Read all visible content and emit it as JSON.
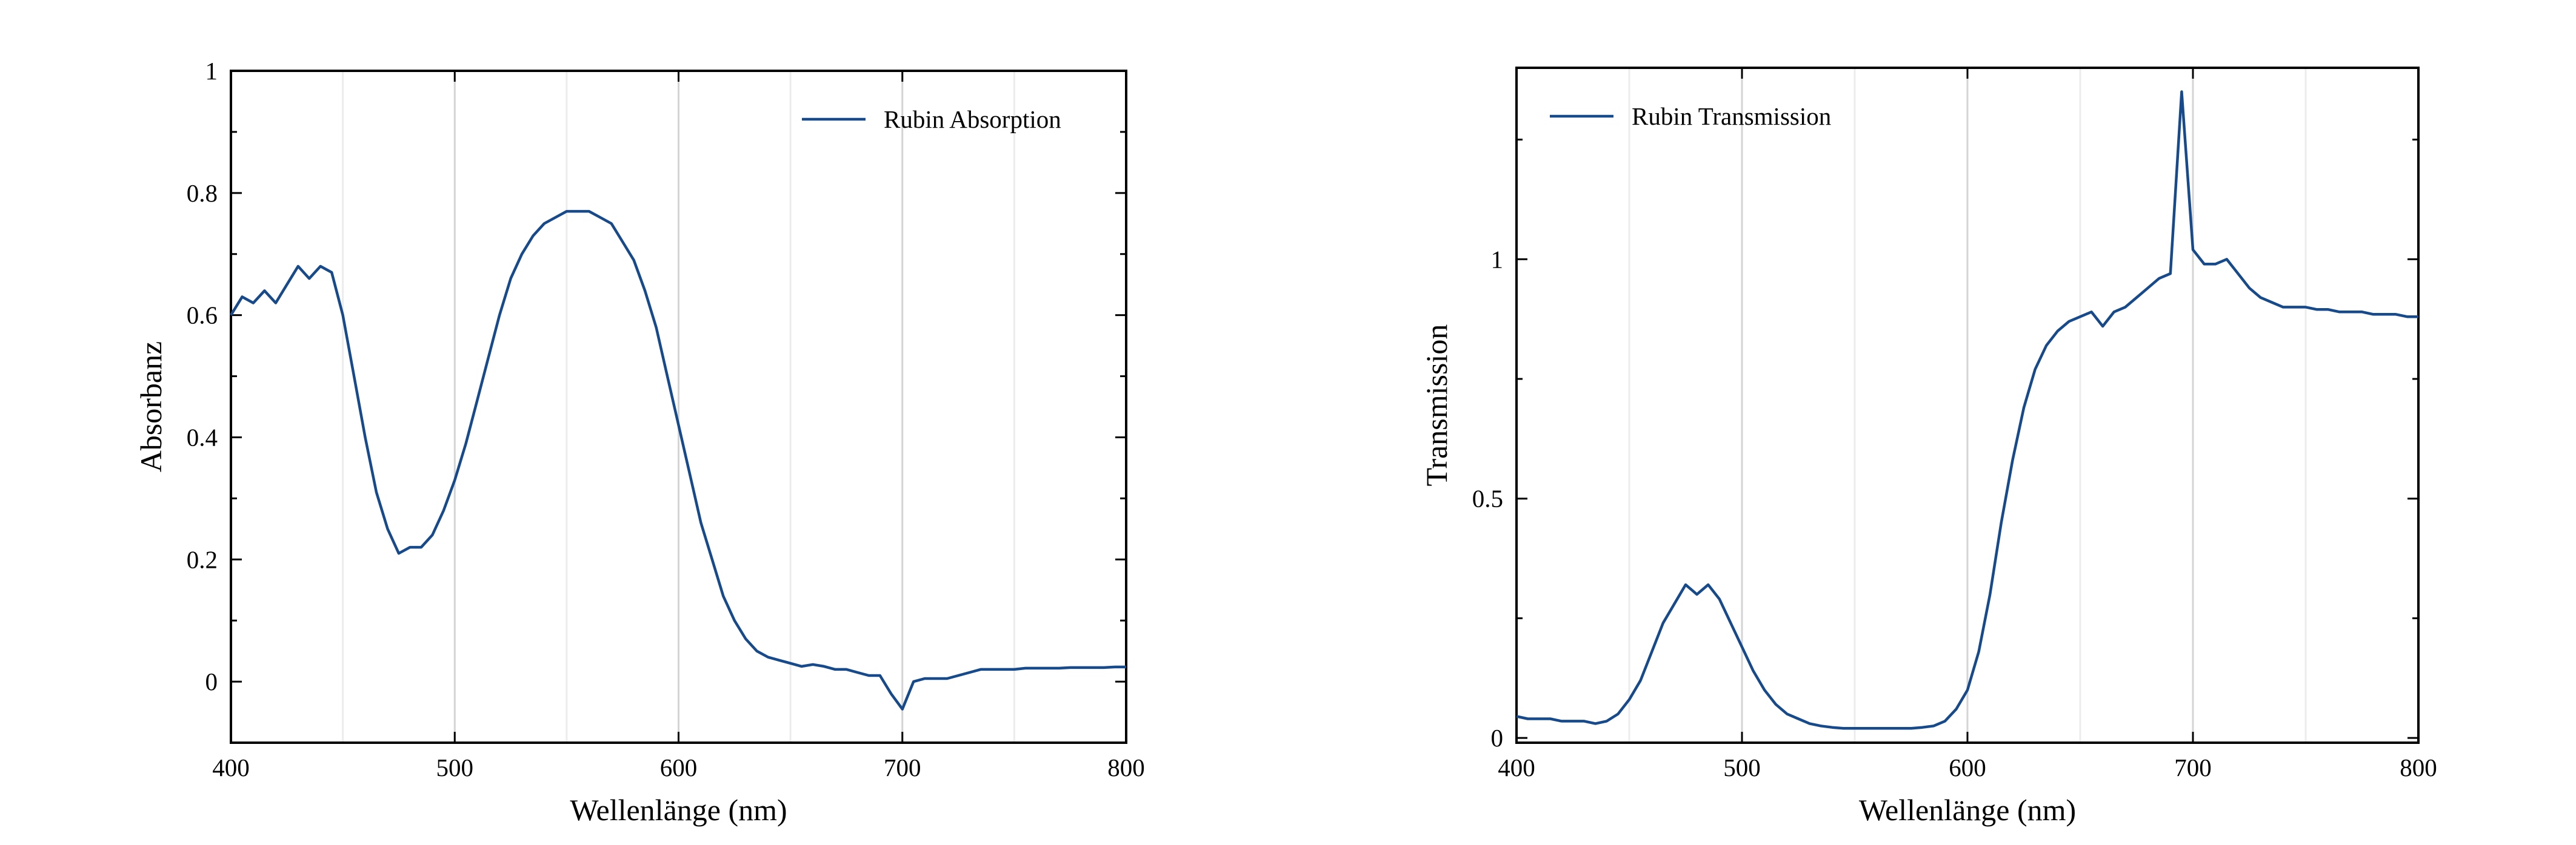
{
  "chart_data": [
    {
      "type": "line",
      "xlabel": "Wellenlänge (nm)",
      "ylabel": "Absorbanz",
      "x": [
        400,
        405,
        410,
        415,
        420,
        425,
        430,
        435,
        440,
        445,
        450,
        455,
        460,
        465,
        470,
        475,
        480,
        485,
        490,
        495,
        500,
        505,
        510,
        515,
        520,
        525,
        530,
        535,
        540,
        545,
        550,
        555,
        560,
        565,
        570,
        575,
        580,
        585,
        590,
        595,
        600,
        605,
        610,
        615,
        620,
        625,
        630,
        635,
        640,
        645,
        650,
        655,
        660,
        665,
        670,
        675,
        680,
        685,
        690,
        695,
        700,
        705,
        710,
        715,
        720,
        725,
        730,
        735,
        740,
        745,
        750,
        755,
        760,
        765,
        770,
        775,
        780,
        785,
        790,
        795,
        800
      ],
      "series": [
        {
          "name": "Rubin Absorption",
          "color": "#174a8b",
          "values": [
            0.6,
            0.63,
            0.62,
            0.64,
            0.62,
            0.65,
            0.68,
            0.66,
            0.68,
            0.67,
            0.6,
            0.5,
            0.4,
            0.31,
            0.25,
            0.21,
            0.22,
            0.22,
            0.24,
            0.28,
            0.33,
            0.39,
            0.46,
            0.53,
            0.6,
            0.66,
            0.7,
            0.73,
            0.75,
            0.76,
            0.77,
            0.77,
            0.77,
            0.76,
            0.75,
            0.72,
            0.69,
            0.64,
            0.58,
            0.5,
            0.42,
            0.34,
            0.26,
            0.2,
            0.14,
            0.1,
            0.07,
            0.05,
            0.04,
            0.035,
            0.03,
            0.025,
            0.028,
            0.025,
            0.02,
            0.02,
            0.015,
            0.01,
            0.01,
            -0.02,
            -0.045,
            0,
            0.005,
            0.005,
            0.005,
            0.01,
            0.015,
            0.02,
            0.02,
            0.02,
            0.02,
            0.022,
            0.022,
            0.022,
            0.022,
            0.023,
            0.023,
            0.023,
            0.023,
            0.024,
            0.024
          ]
        }
      ],
      "xlim": [
        400,
        800
      ],
      "ylim": [
        -0.1,
        1
      ],
      "xticks": [
        400,
        500,
        600,
        700,
        800
      ],
      "yticks": [
        0,
        0.2,
        0.4,
        0.6,
        0.8,
        1
      ],
      "grid": true,
      "legend": "upper right"
    },
    {
      "type": "line",
      "xlabel": "Wellenlänge (nm)",
      "ylabel": "Transmission",
      "x": [
        400,
        405,
        410,
        415,
        420,
        425,
        430,
        435,
        440,
        445,
        450,
        455,
        460,
        465,
        470,
        475,
        480,
        485,
        490,
        495,
        500,
        505,
        510,
        515,
        520,
        525,
        530,
        535,
        540,
        545,
        550,
        555,
        560,
        565,
        570,
        575,
        580,
        585,
        590,
        595,
        600,
        605,
        610,
        615,
        620,
        625,
        630,
        635,
        640,
        645,
        650,
        655,
        660,
        665,
        670,
        675,
        680,
        685,
        690,
        695,
        700,
        705,
        710,
        715,
        720,
        725,
        730,
        735,
        740,
        745,
        750,
        755,
        760,
        765,
        770,
        775,
        780,
        785,
        790,
        795,
        800
      ],
      "series": [
        {
          "name": "Rubin Transmission",
          "color": "#174a8b",
          "values": [
            0.045,
            0.04,
            0.04,
            0.04,
            0.035,
            0.035,
            0.035,
            0.03,
            0.035,
            0.05,
            0.08,
            0.12,
            0.18,
            0.24,
            0.28,
            0.32,
            0.3,
            0.32,
            0.29,
            0.24,
            0.19,
            0.14,
            0.1,
            0.07,
            0.05,
            0.04,
            0.03,
            0.025,
            0.022,
            0.02,
            0.02,
            0.02,
            0.02,
            0.02,
            0.02,
            0.02,
            0.022,
            0.025,
            0.035,
            0.06,
            0.1,
            0.18,
            0.3,
            0.45,
            0.58,
            0.69,
            0.77,
            0.82,
            0.85,
            0.87,
            0.88,
            0.89,
            0.86,
            0.89,
            0.9,
            0.92,
            0.94,
            0.96,
            0.97,
            1.35,
            1.02,
            0.99,
            0.99,
            1.0,
            0.97,
            0.94,
            0.92,
            0.91,
            0.9,
            0.9,
            0.9,
            0.895,
            0.895,
            0.89,
            0.89,
            0.89,
            0.885,
            0.885,
            0.885,
            0.88,
            0.88
          ]
        }
      ],
      "xlim": [
        400,
        800
      ],
      "ylim": [
        -0.01,
        1.4
      ],
      "xticks": [
        400,
        500,
        600,
        700,
        800
      ],
      "yticks": [
        0,
        0.5,
        1
      ],
      "grid": true,
      "legend": "upper left"
    }
  ]
}
